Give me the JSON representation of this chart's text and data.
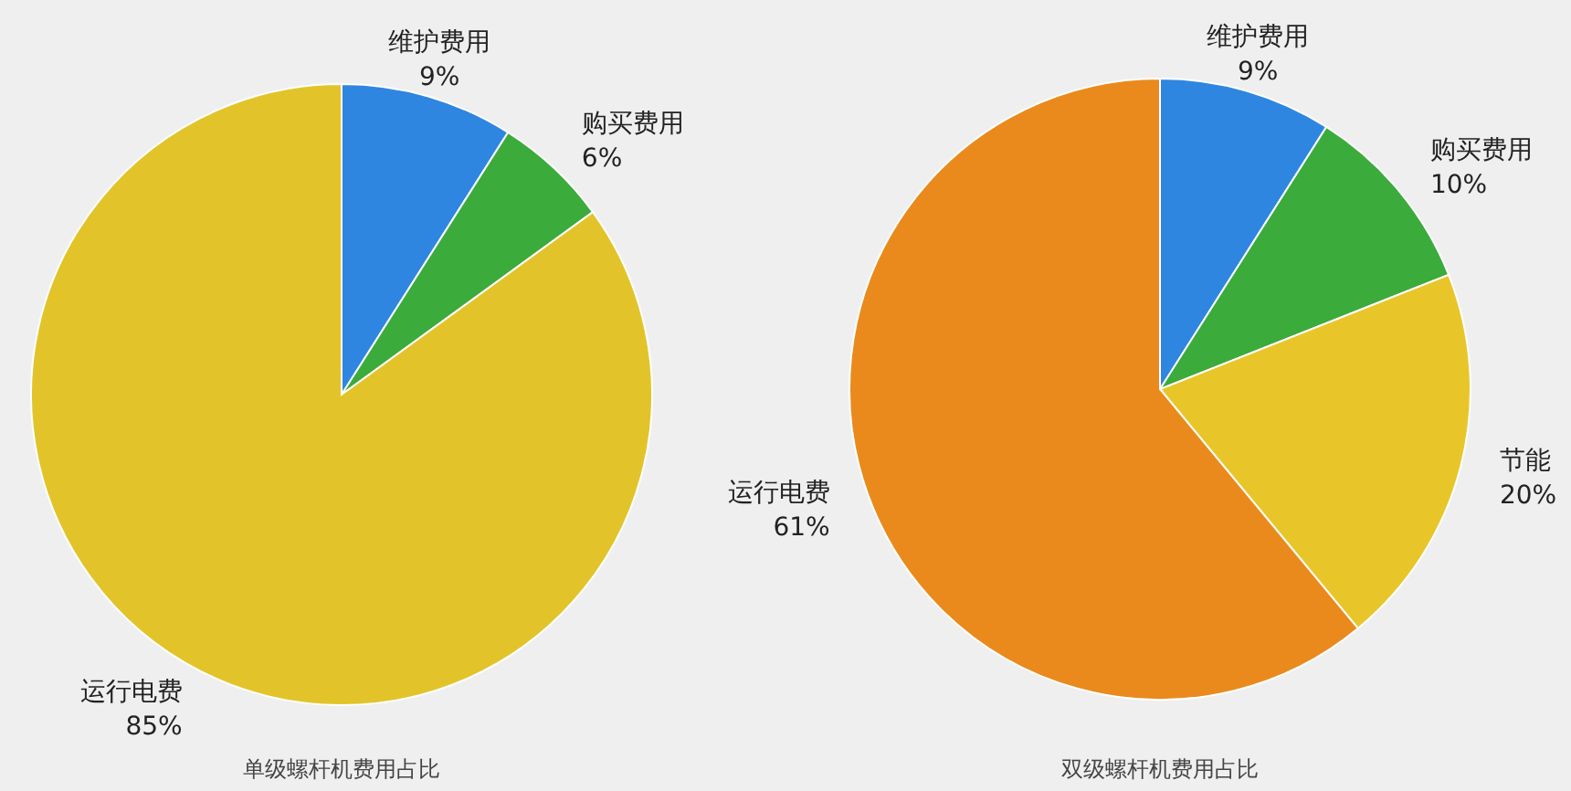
{
  "chart_data": [
    {
      "type": "pie",
      "title": "单级螺杆机费用占比",
      "categories": [
        "维护费用",
        "购买费用",
        "运行电费"
      ],
      "values": [
        9,
        6,
        85
      ],
      "value_labels": [
        "9%",
        "6%",
        "85%"
      ],
      "colors": [
        "#2f86e0",
        "#3bab3b",
        "#e2c42a"
      ]
    },
    {
      "type": "pie",
      "title": "双级螺杆机费用占比",
      "categories": [
        "维护费用",
        "购买费用",
        "节能",
        "运行电费"
      ],
      "values": [
        9,
        10,
        20,
        61
      ],
      "value_labels": [
        "9%",
        "10%",
        "20%",
        "61%"
      ],
      "colors": [
        "#2f86e0",
        "#3bab3b",
        "#e8c62a",
        "#ea8a1c"
      ]
    }
  ]
}
